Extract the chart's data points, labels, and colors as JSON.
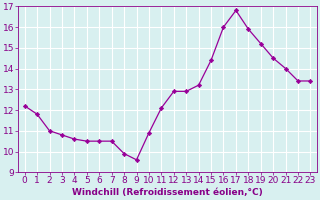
{
  "x": [
    0,
    1,
    2,
    3,
    4,
    5,
    6,
    7,
    8,
    9,
    10,
    11,
    12,
    13,
    14,
    15,
    16,
    17,
    18,
    19,
    20,
    21,
    22,
    23
  ],
  "y": [
    12.2,
    11.8,
    11.0,
    10.8,
    10.6,
    10.5,
    10.5,
    10.5,
    9.9,
    9.6,
    10.9,
    12.1,
    12.9,
    12.9,
    13.2,
    14.4,
    16.0,
    16.8,
    15.9,
    15.2,
    14.5,
    14.0,
    13.4,
    13.4
  ],
  "line_color": "#990099",
  "marker": "D",
  "marker_size": 2.2,
  "background_color": "#d8f0f0",
  "grid_color": "#b0d8d8",
  "xlabel": "Windchill (Refroidissement éolien,°C)",
  "ylabel": "",
  "ylim": [
    9,
    17
  ],
  "xlim": [
    -0.5,
    23.5
  ],
  "yticks": [
    9,
    10,
    11,
    12,
    13,
    14,
    15,
    16,
    17
  ],
  "xticks": [
    0,
    1,
    2,
    3,
    4,
    5,
    6,
    7,
    8,
    9,
    10,
    11,
    12,
    13,
    14,
    15,
    16,
    17,
    18,
    19,
    20,
    21,
    22,
    23
  ],
  "tick_color": "#880088",
  "label_fontsize": 6.5,
  "tick_fontsize": 6.5
}
